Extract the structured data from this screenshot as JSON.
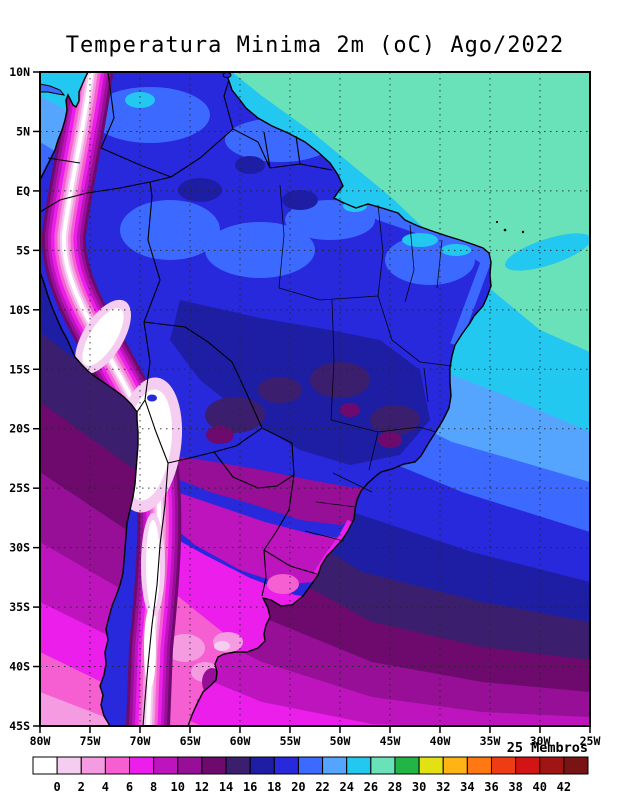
{
  "title": "Temperatura Minima 2m (oC) Ago/2022",
  "ensemble_label": "25 Membros",
  "axes": {
    "lat_labels": [
      "10N",
      "5N",
      "EQ",
      "5S",
      "10S",
      "15S",
      "20S",
      "25S",
      "30S",
      "35S",
      "40S",
      "45S"
    ],
    "lon_labels": [
      "80W",
      "75W",
      "70W",
      "65W",
      "60W",
      "55W",
      "50W",
      "45W",
      "40W",
      "35W",
      "30W",
      "25W"
    ]
  },
  "colorbar": {
    "tick_labels": [
      "0",
      "2",
      "4",
      "6",
      "8",
      "10",
      "12",
      "14",
      "16",
      "18",
      "20",
      "22",
      "24",
      "26",
      "28",
      "30",
      "32",
      "34",
      "36",
      "38",
      "40",
      "42"
    ],
    "colors": [
      "#ffffff",
      "#f5cdf0",
      "#f59be1",
      "#f55fd2",
      "#eb1eeb",
      "#be14be",
      "#960f96",
      "#6e0a6e",
      "#3c1e6e",
      "#1e1ea5",
      "#2828dc",
      "#3c69ff",
      "#55a5ff",
      "#23c8f0",
      "#69e1b9",
      "#23b446",
      "#e1e114",
      "#ffb414",
      "#ff7814",
      "#f03c14",
      "#d21414",
      "#a01414",
      "#781414"
    ]
  },
  "map_colors": {
    "frame": "#000000",
    "borders": "#000000",
    "grid": "#222222"
  }
}
